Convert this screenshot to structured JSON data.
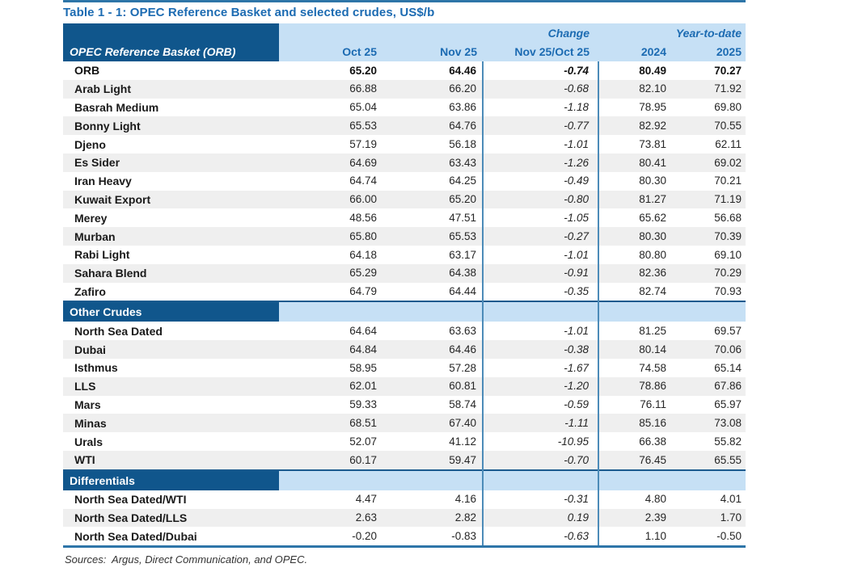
{
  "title": "Table 1 - 1: OPEC Reference Basket and selected crudes, US$/b",
  "footer": "Sources:  Argus, Direct Communication, and OPEC.",
  "colors": {
    "header_dark_blue": "#10568c",
    "header_light_blue": "#c6e0f5",
    "heading_text_blue": "#1c6bb2",
    "alt_row_gray": "#efefef",
    "rule_blue": "#2e75a8",
    "column_divider_blue": "#4c8bb8"
  },
  "table": {
    "group_headers": {
      "change": "Change",
      "ytd": "Year-to-date"
    },
    "columns": [
      "OPEC Reference Basket (ORB)",
      "Oct 25",
      "Nov 25",
      "Nov 25/Oct 25",
      "2024",
      "2025"
    ],
    "sections": [
      {
        "header": null,
        "rows": [
          {
            "label": "ORB",
            "bold": true,
            "values": [
              "65.20",
              "64.46",
              "-0.74",
              "80.49",
              "70.27"
            ]
          },
          {
            "label": "Arab Light",
            "values": [
              "66.88",
              "66.20",
              "-0.68",
              "82.10",
              "71.92"
            ]
          },
          {
            "label": "Basrah Medium",
            "values": [
              "65.04",
              "63.86",
              "-1.18",
              "78.95",
              "69.80"
            ]
          },
          {
            "label": "Bonny Light",
            "values": [
              "65.53",
              "64.76",
              "-0.77",
              "82.92",
              "70.55"
            ]
          },
          {
            "label": "Djeno",
            "values": [
              "57.19",
              "56.18",
              "-1.01",
              "73.81",
              "62.11"
            ]
          },
          {
            "label": "Es Sider",
            "values": [
              "64.69",
              "63.43",
              "-1.26",
              "80.41",
              "69.02"
            ]
          },
          {
            "label": "Iran Heavy",
            "values": [
              "64.74",
              "64.25",
              "-0.49",
              "80.30",
              "70.21"
            ]
          },
          {
            "label": "Kuwait Export",
            "values": [
              "66.00",
              "65.20",
              "-0.80",
              "81.27",
              "71.19"
            ]
          },
          {
            "label": "Merey",
            "values": [
              "48.56",
              "47.51",
              "-1.05",
              "65.62",
              "56.68"
            ]
          },
          {
            "label": "Murban",
            "values": [
              "65.80",
              "65.53",
              "-0.27",
              "80.30",
              "70.39"
            ]
          },
          {
            "label": "Rabi Light",
            "values": [
              "64.18",
              "63.17",
              "-1.01",
              "80.80",
              "69.10"
            ]
          },
          {
            "label": "Sahara Blend",
            "values": [
              "65.29",
              "64.38",
              "-0.91",
              "82.36",
              "70.29"
            ]
          },
          {
            "label": "Zafiro",
            "values": [
              "64.79",
              "64.44",
              "-0.35",
              "82.74",
              "70.93"
            ]
          }
        ]
      },
      {
        "header": "Other Crudes",
        "rows": [
          {
            "label": "North Sea Dated",
            "values": [
              "64.64",
              "63.63",
              "-1.01",
              "81.25",
              "69.57"
            ]
          },
          {
            "label": "Dubai",
            "values": [
              "64.84",
              "64.46",
              "-0.38",
              "80.14",
              "70.06"
            ]
          },
          {
            "label": "Isthmus",
            "values": [
              "58.95",
              "57.28",
              "-1.67",
              "74.58",
              "65.14"
            ]
          },
          {
            "label": "LLS",
            "values": [
              "62.01",
              "60.81",
              "-1.20",
              "78.86",
              "67.86"
            ]
          },
          {
            "label": "Mars",
            "values": [
              "59.33",
              "58.74",
              "-0.59",
              "76.11",
              "65.97"
            ]
          },
          {
            "label": "Minas",
            "values": [
              "68.51",
              "67.40",
              "-1.11",
              "85.16",
              "73.08"
            ]
          },
          {
            "label": "Urals",
            "values": [
              "52.07",
              "41.12",
              "-10.95",
              "66.38",
              "55.82"
            ]
          },
          {
            "label": "WTI",
            "values": [
              "60.17",
              "59.47",
              "-0.70",
              "76.45",
              "65.55"
            ]
          }
        ]
      },
      {
        "header": "Differentials",
        "rows": [
          {
            "label": "North Sea Dated/WTI",
            "values": [
              "4.47",
              "4.16",
              "-0.31",
              "4.80",
              "4.01"
            ]
          },
          {
            "label": "North Sea Dated/LLS",
            "values": [
              "2.63",
              "2.82",
              "0.19",
              "2.39",
              "1.70"
            ]
          },
          {
            "label": "North Sea Dated/Dubai",
            "values": [
              "-0.20",
              "-0.83",
              "-0.63",
              "1.10",
              "-0.50"
            ]
          }
        ]
      }
    ]
  }
}
